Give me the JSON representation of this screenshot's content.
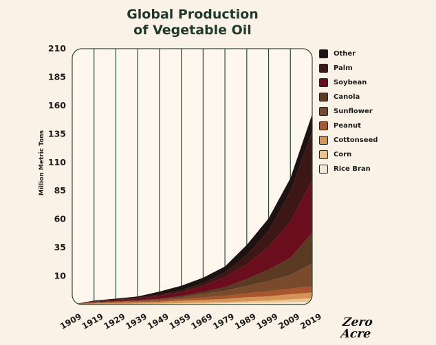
{
  "title_line1": "Global Production",
  "title_line2": "of Vegetable Oil",
  "logo_line1": "Zero",
  "logo_line2": "Acre",
  "chart_data": {
    "type": "area",
    "stacked": true,
    "title": "Global Production of Vegetable Oil",
    "xlabel": "",
    "ylabel": "Million Metric Tons",
    "x": [
      1909,
      1919,
      1929,
      1939,
      1949,
      1959,
      1969,
      1979,
      1989,
      1999,
      2009,
      2019
    ],
    "y_ticks": [
      10,
      35,
      60,
      85,
      110,
      135,
      160,
      185,
      210
    ],
    "ylim": [
      -15,
      210
    ],
    "grid": "vertical",
    "legend_position": "right",
    "series": [
      {
        "name": "Rice Bran",
        "color": "#f5e6d4",
        "values": [
          0,
          0.1,
          0.2,
          0.3,
          0.4,
          0.6,
          0.8,
          1.0,
          1.3,
          1.6,
          2.2,
          2.5
        ]
      },
      {
        "name": "Corn",
        "color": "#edc48a",
        "values": [
          0,
          0.2,
          0.3,
          0.4,
          0.5,
          0.7,
          0.9,
          1.1,
          1.5,
          1.8,
          2.4,
          3.0
        ]
      },
      {
        "name": "Cottonseed",
        "color": "#d49457",
        "values": [
          0,
          0.8,
          1.0,
          1.2,
          1.5,
          2.0,
          2.4,
          2.8,
          3.6,
          3.8,
          4.5,
          5.0
        ]
      },
      {
        "name": "Peanut",
        "color": "#a9562f",
        "values": [
          0,
          0.6,
          0.8,
          1.0,
          1.3,
          1.7,
          2.2,
          2.8,
          3.5,
          4.5,
          5.0,
          5.5
        ]
      },
      {
        "name": "Sunflower",
        "color": "#7a4a2c",
        "values": [
          0,
          0.1,
          0.2,
          0.4,
          0.8,
          1.5,
          3.0,
          4.5,
          6.5,
          9.0,
          12.0,
          20.0
        ]
      },
      {
        "name": "Canola",
        "color": "#5a3a22",
        "values": [
          0,
          0.3,
          0.4,
          0.5,
          0.6,
          1.0,
          1.8,
          3.0,
          6.0,
          10.0,
          15.0,
          27.0
        ]
      },
      {
        "name": "Soybean",
        "color": "#6a0d1c",
        "values": [
          0,
          0.5,
          1.0,
          1.5,
          2.5,
          3.5,
          5.5,
          9.0,
          13.0,
          20.0,
          32.0,
          46.0
        ]
      },
      {
        "name": "Palm",
        "color": "#3d1616",
        "values": [
          0,
          0.3,
          0.5,
          0.8,
          1.2,
          1.5,
          2.2,
          3.8,
          8.0,
          14.0,
          26.0,
          43.0
        ]
      },
      {
        "name": "Other",
        "color": "#1f1212",
        "values": [
          0,
          0.6,
          0.8,
          1.0,
          2.6,
          4.0,
          4.8,
          5.5,
          9.0,
          11.0,
          12.0,
          15.5
        ]
      }
    ]
  }
}
